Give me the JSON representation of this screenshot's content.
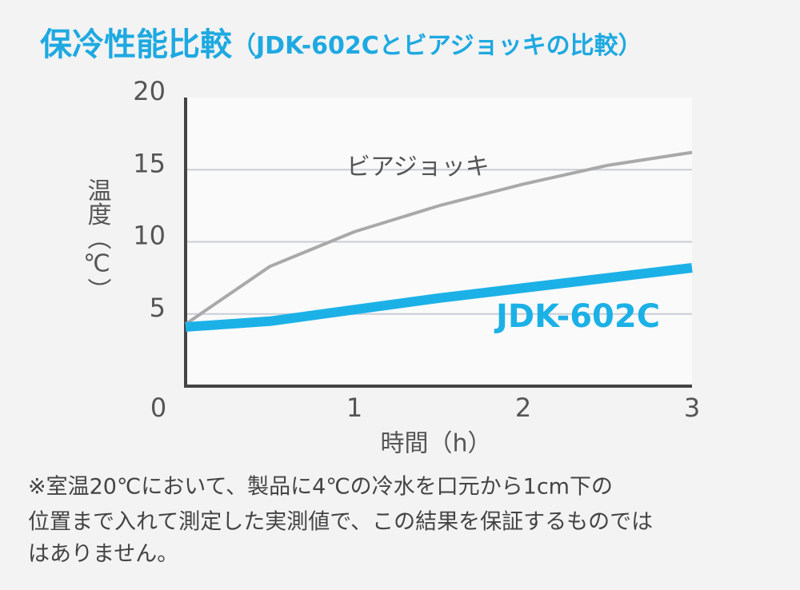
{
  "chart_data": {
    "type": "line",
    "title": "保冷性能比較",
    "subtitle": "（JDK-602Cとビアジョッキの比較）",
    "x_label": "時間（h）",
    "y_label": "温度（℃）",
    "x": [
      0,
      0.5,
      1,
      1.5,
      2,
      2.5,
      3
    ],
    "series": [
      {
        "name": "ビアジョッキ",
        "color": "#a9a9a9",
        "values": [
          4.3,
          8.3,
          10.7,
          12.5,
          14.0,
          15.3,
          16.2
        ]
      },
      {
        "name": "JDK-602C",
        "color": "#1bb1e7",
        "values": [
          4.1,
          4.5,
          5.3,
          6.1,
          6.8,
          7.5,
          8.2
        ]
      }
    ],
    "xlim": [
      0,
      3
    ],
    "xticks": [
      1,
      2,
      3
    ],
    "ylim": [
      0,
      20
    ],
    "yticks": [
      0,
      5,
      10,
      15,
      20
    ],
    "grid": true,
    "note": [
      "※室温20℃において、製品に4℃の冷水を口元から1cm下の",
      "位置まで入れて測定した実測値で、この結果を保証するものでは",
      "はありません。"
    ]
  }
}
